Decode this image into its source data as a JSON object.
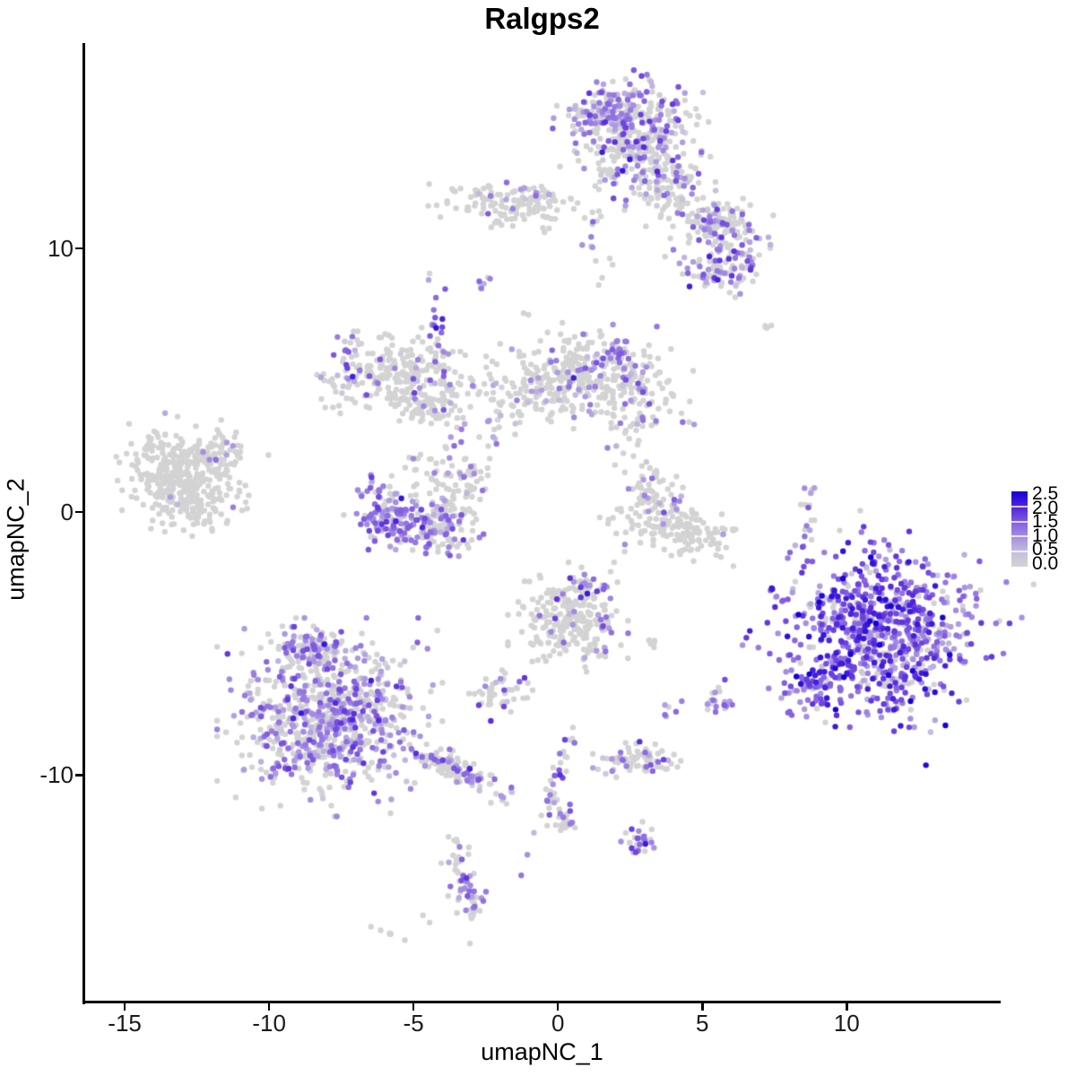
{
  "title": "Ralgps2",
  "axes": {
    "x_label": "umapNC_1",
    "y_label": "umapNC_2",
    "x_tick_labels": [
      "-15",
      "-10",
      "-5",
      "0",
      "5",
      "10"
    ],
    "y_tick_labels": [
      "10",
      "0",
      "-10"
    ]
  },
  "legend": {
    "tick_labels": [
      "2.5",
      "2.0",
      "1.5",
      "1.0",
      "0.5",
      "0.0"
    ],
    "values": [
      2.5,
      2.0,
      1.5,
      1.0,
      0.5,
      0.0
    ],
    "low_color": "#d3d3d3",
    "high_color": "#1500d8"
  },
  "colors": {
    "background": "#ffffff",
    "axis": "#000000",
    "text": "#000000",
    "non_expressing_point": "#d3d3d3",
    "max_expression_point": "#1500d8"
  },
  "chart_data": {
    "type": "scatter",
    "title": "Ralgps2",
    "xlabel": "umapNC_1",
    "ylabel": "umapNC_2",
    "xlim": [
      -16.4,
      15.3
    ],
    "ylim": [
      -18.6,
      17.8
    ],
    "x_ticks": [
      -15,
      -10,
      -5,
      0,
      5,
      10
    ],
    "y_ticks": [
      10,
      0,
      -10
    ],
    "grid": false,
    "legend_position": "right",
    "legend_values": [
      2.5,
      2.0,
      1.5,
      1.0,
      0.5,
      0.0
    ],
    "value_range": [
      0.0,
      2.5
    ],
    "point_radius_px": 3.2,
    "seed": 12,
    "color_stops": [
      {
        "t": 0.0,
        "color": "#d3d3d3"
      },
      {
        "t": 0.18,
        "color": "#c7c1de"
      },
      {
        "t": 0.36,
        "color": "#ab97e2"
      },
      {
        "t": 0.55,
        "color": "#8a68e2"
      },
      {
        "t": 0.75,
        "color": "#5c2fdd"
      },
      {
        "t": 1.0,
        "color": "#1500d8"
      }
    ],
    "clusters": [
      {
        "name": "top-main",
        "cx": 2.55,
        "cy": 14.3,
        "sx": 1.05,
        "sy": 0.95,
        "rot": 0,
        "n": 400,
        "expr_frac": 0.4,
        "expr_mean": 1.1,
        "expr_sd": 0.45
      },
      {
        "name": "top-main-upper",
        "cx": 1.75,
        "cy": 15.2,
        "sx": 0.5,
        "sy": 0.35,
        "rot": -20,
        "n": 70,
        "expr_frac": 0.55,
        "expr_mean": 1.15,
        "expr_sd": 0.4
      },
      {
        "name": "top-neck",
        "cx": 3.9,
        "cy": 12.4,
        "sx": 0.6,
        "sy": 0.6,
        "rot": 0,
        "n": 95,
        "expr_frac": 0.22,
        "expr_mean": 1.0,
        "expr_sd": 0.4
      },
      {
        "name": "top-right-blob",
        "cx": 5.6,
        "cy": 10.9,
        "sx": 0.68,
        "sy": 0.45,
        "rot": -10,
        "n": 130,
        "expr_frac": 0.3,
        "expr_mean": 1.0,
        "expr_sd": 0.4
      },
      {
        "name": "top-right-lower",
        "cx": 5.7,
        "cy": 9.3,
        "sx": 0.7,
        "sy": 0.5,
        "rot": 15,
        "n": 110,
        "expr_frac": 0.42,
        "expr_mean": 1.1,
        "expr_sd": 0.45
      },
      {
        "name": "top-bridge-dots",
        "cx": 1.4,
        "cy": 10.0,
        "sx": 0.35,
        "sy": 1.0,
        "rot": 0,
        "n": 16,
        "expr_frac": 0.2,
        "expr_mean": 1.0,
        "expr_sd": 0.35
      },
      {
        "name": "upper-band",
        "cx": -1.6,
        "cy": 11.7,
        "sx": 1.2,
        "sy": 0.42,
        "rot": 0,
        "n": 145,
        "expr_frac": 0.07,
        "expr_mean": 0.9,
        "expr_sd": 0.35
      },
      {
        "name": "band-dot",
        "cx": -2.55,
        "cy": 8.75,
        "sx": 0.22,
        "sy": 0.1,
        "rot": 45,
        "n": 7,
        "expr_frac": 0.3,
        "expr_mean": 1.1,
        "expr_sd": 0.3
      },
      {
        "name": "mid-left",
        "cx": -5.4,
        "cy": 5.15,
        "sx": 1.15,
        "sy": 0.7,
        "rot": -8,
        "n": 235,
        "expr_frac": 0.1,
        "expr_mean": 1.0,
        "expr_sd": 0.4
      },
      {
        "name": "mid-left-edge",
        "cx": -7.3,
        "cy": 5.3,
        "sx": 0.35,
        "sy": 0.8,
        "rot": 0,
        "n": 40,
        "expr_frac": 0.42,
        "expr_mean": 1.1,
        "expr_sd": 0.4
      },
      {
        "name": "mid-left-arm",
        "cx": -4.5,
        "cy": 3.9,
        "sx": 0.55,
        "sy": 0.3,
        "rot": -20,
        "n": 40,
        "expr_frac": 0.08,
        "expr_mean": 0.9,
        "expr_sd": 0.3
      },
      {
        "name": "purple-streak",
        "cx": -4.15,
        "cy": 6.6,
        "sx": 0.2,
        "sy": 1.05,
        "rot": 8,
        "n": 32,
        "expr_frac": 0.68,
        "expr_mean": 1.3,
        "expr_sd": 0.45
      },
      {
        "name": "streak-chain",
        "cx": -3.25,
        "cy": 3.6,
        "sx": 0.22,
        "sy": 0.95,
        "rot": -18,
        "n": 14,
        "expr_frac": 0.3,
        "expr_mean": 0.9,
        "expr_sd": 0.3
      },
      {
        "name": "central",
        "cx": 0.9,
        "cy": 5.1,
        "sx": 1.3,
        "sy": 0.8,
        "rot": 0,
        "n": 340,
        "expr_frac": 0.14,
        "expr_mean": 1.0,
        "expr_sd": 0.4
      },
      {
        "name": "central-top-accent",
        "cx": 2.1,
        "cy": 5.95,
        "sx": 0.3,
        "sy": 0.3,
        "rot": 0,
        "n": 22,
        "expr_frac": 0.75,
        "expr_mean": 1.2,
        "expr_sd": 0.35
      },
      {
        "name": "central-right",
        "cx": 2.9,
        "cy": 4.2,
        "sx": 0.7,
        "sy": 0.7,
        "rot": 0,
        "n": 70,
        "expr_frac": 0.3,
        "expr_mean": 1.0,
        "expr_sd": 0.4
      },
      {
        "name": "central-left-arm",
        "cx": -1.5,
        "cy": 4.2,
        "sx": 0.6,
        "sy": 0.5,
        "rot": 20,
        "n": 40,
        "expr_frac": 0.12,
        "expr_mean": 0.9,
        "expr_sd": 0.3
      },
      {
        "name": "central-south-dots",
        "cx": -2.2,
        "cy": 2.7,
        "sx": 0.25,
        "sy": 0.55,
        "rot": 0,
        "n": 10,
        "expr_frac": 0.25,
        "expr_mean": 0.9,
        "expr_sd": 0.3
      },
      {
        "name": "far-left",
        "cx": -13.0,
        "cy": 1.2,
        "sx": 0.95,
        "sy": 0.85,
        "rot": -20,
        "n": 420,
        "expr_frac": 0.012,
        "expr_mean": 0.8,
        "expr_sd": 0.3
      },
      {
        "name": "far-left-trail",
        "cx": -11.6,
        "cy": 2.35,
        "sx": 0.4,
        "sy": 0.4,
        "rot": -40,
        "n": 35,
        "expr_frac": 0.12,
        "expr_mean": 1.0,
        "expr_sd": 0.35
      },
      {
        "name": "crescent-bottom",
        "cx": -4.85,
        "cy": -0.55,
        "sx": 1.0,
        "sy": 0.45,
        "rot": -8,
        "n": 175,
        "expr_frac": 0.58,
        "expr_mean": 1.15,
        "expr_sd": 0.4
      },
      {
        "name": "crescent-left",
        "cx": -5.95,
        "cy": 0.3,
        "sx": 0.35,
        "sy": 0.55,
        "rot": 25,
        "n": 60,
        "expr_frac": 0.5,
        "expr_mean": 1.1,
        "expr_sd": 0.4
      },
      {
        "name": "crescent-right",
        "cx": -3.6,
        "cy": 0.15,
        "sx": 0.5,
        "sy": 0.7,
        "rot": -20,
        "n": 90,
        "expr_frac": 0.15,
        "expr_mean": 0.95,
        "expr_sd": 0.35
      },
      {
        "name": "crescent-top-scatter",
        "cx": -4.6,
        "cy": 1.5,
        "sx": 0.95,
        "sy": 0.4,
        "rot": 0,
        "n": 35,
        "expr_frac": 0.2,
        "expr_mean": 1.0,
        "expr_sd": 0.35
      },
      {
        "name": "mid-bowl-arm",
        "cx": 3.3,
        "cy": 0.75,
        "sx": 0.4,
        "sy": 0.55,
        "rot": 15,
        "n": 55,
        "expr_frac": 0.1,
        "expr_mean": 1.0,
        "expr_sd": 0.35
      },
      {
        "name": "mid-bowl-accent",
        "cx": 3.95,
        "cy": 0.45,
        "sx": 0.22,
        "sy": 0.26,
        "rot": 0,
        "n": 6,
        "expr_frac": 0.85,
        "expr_mean": 1.15,
        "expr_sd": 0.3
      },
      {
        "name": "mid-bowl",
        "cx": 4.1,
        "cy": -0.7,
        "sx": 1.05,
        "sy": 0.45,
        "rot": -12,
        "n": 150,
        "expr_frac": 0.02,
        "expr_mean": 0.8,
        "expr_sd": 0.3
      },
      {
        "name": "mid-gap-dots",
        "cx": 2.5,
        "cy": 2.0,
        "sx": 0.45,
        "sy": 0.35,
        "rot": 0,
        "n": 6,
        "expr_frac": 0.15,
        "expr_mean": 0.9,
        "expr_sd": 0.3
      },
      {
        "name": "right-streak",
        "cx": 8.65,
        "cy": 0.1,
        "sx": 0.13,
        "sy": 0.9,
        "rot": 0,
        "n": 18,
        "expr_frac": 0.45,
        "expr_mean": 1.2,
        "expr_sd": 0.4
      },
      {
        "name": "big-right",
        "cx": 11.2,
        "cy": -4.6,
        "sx": 1.6,
        "sy": 1.5,
        "rot": -25,
        "n": 820,
        "expr_frac": 0.82,
        "expr_mean": 1.35,
        "expr_sd": 0.5
      },
      {
        "name": "big-right-tip",
        "cx": 8.95,
        "cy": -6.6,
        "sx": 0.45,
        "sy": 0.65,
        "rot": -30,
        "n": 70,
        "expr_frac": 0.9,
        "expr_mean": 1.5,
        "expr_sd": 0.5
      },
      {
        "name": "center-bottom",
        "cx": 0.35,
        "cy": -4.0,
        "sx": 0.8,
        "sy": 0.8,
        "rot": 0,
        "n": 235,
        "expr_frac": 0.08,
        "expr_mean": 1.0,
        "expr_sd": 0.4
      },
      {
        "name": "center-bottom-ne",
        "cx": 0.95,
        "cy": -2.9,
        "sx": 0.45,
        "sy": 0.25,
        "rot": -15,
        "n": 25,
        "expr_frac": 0.4,
        "expr_mean": 1.2,
        "expr_sd": 0.4
      },
      {
        "name": "center-bottom-streak",
        "cx": 1.6,
        "cy": -4.9,
        "sx": 0.15,
        "sy": 0.6,
        "rot": 0,
        "n": 16,
        "expr_frac": 0.55,
        "expr_mean": 1.25,
        "expr_sd": 0.4
      },
      {
        "name": "small-left-pair",
        "cx": -1.95,
        "cy": -6.9,
        "sx": 0.45,
        "sy": 0.4,
        "rot": 0,
        "n": 45,
        "expr_frac": 0.25,
        "expr_mean": 1.1,
        "expr_sd": 0.4
      },
      {
        "name": "bottom-left-main",
        "cx": -7.9,
        "cy": -7.8,
        "sx": 1.5,
        "sy": 1.45,
        "rot": 0,
        "n": 790,
        "expr_frac": 0.5,
        "expr_mean": 1.05,
        "expr_sd": 0.4
      },
      {
        "name": "bottom-left-top",
        "cx": -8.6,
        "cy": -5.2,
        "sx": 0.55,
        "sy": 0.35,
        "rot": 0,
        "n": 90,
        "expr_frac": 0.55,
        "expr_mean": 1.1,
        "expr_sd": 0.4
      },
      {
        "name": "bottom-left-tail",
        "cx": -3.5,
        "cy": -9.8,
        "sx": 0.95,
        "sy": 0.22,
        "rot": -28,
        "n": 120,
        "expr_frac": 0.42,
        "expr_mean": 1.05,
        "expr_sd": 0.4
      },
      {
        "name": "small-pair-mid",
        "cx": 3.9,
        "cy": -7.5,
        "sx": 0.18,
        "sy": 0.18,
        "rot": 0,
        "n": 6,
        "expr_frac": 0.7,
        "expr_mean": 1.1,
        "expr_sd": 0.3
      },
      {
        "name": "right-pair",
        "cx": 5.6,
        "cy": -7.2,
        "sx": 0.3,
        "sy": 0.25,
        "rot": 0,
        "n": 22,
        "expr_frac": 0.5,
        "expr_mean": 1.1,
        "expr_sd": 0.4
      },
      {
        "name": "diag-streak",
        "cx": -0.2,
        "cy": -10.6,
        "sx": 0.13,
        "sy": 1.5,
        "rot": -18,
        "n": 38,
        "expr_frac": 0.55,
        "expr_mean": 1.3,
        "expr_sd": 0.45
      },
      {
        "name": "streak-end-blob",
        "cx": 0.2,
        "cy": -11.7,
        "sx": 0.22,
        "sy": 0.32,
        "rot": 0,
        "n": 22,
        "expr_frac": 0.45,
        "expr_mean": 1.2,
        "expr_sd": 0.4
      },
      {
        "name": "small-horiz",
        "cx": 2.9,
        "cy": -9.4,
        "sx": 0.7,
        "sy": 0.28,
        "rot": 0,
        "n": 75,
        "expr_frac": 0.28,
        "expr_mean": 1.0,
        "expr_sd": 0.35
      },
      {
        "name": "bottom-small",
        "cx": 2.8,
        "cy": -12.5,
        "sx": 0.28,
        "sy": 0.28,
        "rot": 0,
        "n": 30,
        "expr_frac": 0.5,
        "expr_mean": 1.2,
        "expr_sd": 0.4
      },
      {
        "name": "bottom-curve",
        "cx": -3.15,
        "cy": -14.4,
        "sx": 0.26,
        "sy": 0.95,
        "rot": 12,
        "n": 60,
        "expr_frac": 0.45,
        "expr_mean": 1.15,
        "expr_sd": 0.4
      },
      {
        "name": "stray-a",
        "cx": -3.5,
        "cy": -12.35,
        "sx": 0.15,
        "sy": 0.1,
        "rot": 0,
        "n": 3,
        "expr_frac": 0.0,
        "expr_mean": 0.0,
        "expr_sd": 0.0
      },
      {
        "name": "stray-b",
        "cx": -4.45,
        "cy": -15.5,
        "sx": 0.12,
        "sy": 0.08,
        "rot": 0,
        "n": 2,
        "expr_frac": 0.0,
        "expr_mean": 0.0,
        "expr_sd": 0.0
      },
      {
        "name": "stray-dash",
        "cx": -5.8,
        "cy": -16.05,
        "sx": 0.28,
        "sy": 0.07,
        "rot": -30,
        "n": 6,
        "expr_frac": 0.0,
        "expr_mean": 0.0,
        "expr_sd": 0.0
      },
      {
        "name": "stray-top-right",
        "cx": 7.35,
        "cy": 7.0,
        "sx": 0.2,
        "sy": 0.07,
        "rot": 0,
        "n": 4,
        "expr_frac": 0.0,
        "expr_mean": 0.0,
        "expr_sd": 0.0
      },
      {
        "name": "stray-mid",
        "cx": -1.0,
        "cy": 7.5,
        "sx": 0.1,
        "sy": 0.08,
        "rot": 0,
        "n": 2,
        "expr_frac": 0.0,
        "expr_mean": 0.0,
        "expr_sd": 0.0
      },
      {
        "name": "stray-pair",
        "cx": 3.3,
        "cy": -4.95,
        "sx": 0.22,
        "sy": 0.1,
        "rot": 0,
        "n": 5,
        "expr_frac": 0.0,
        "expr_mean": 0.0,
        "expr_sd": 0.0
      }
    ]
  }
}
